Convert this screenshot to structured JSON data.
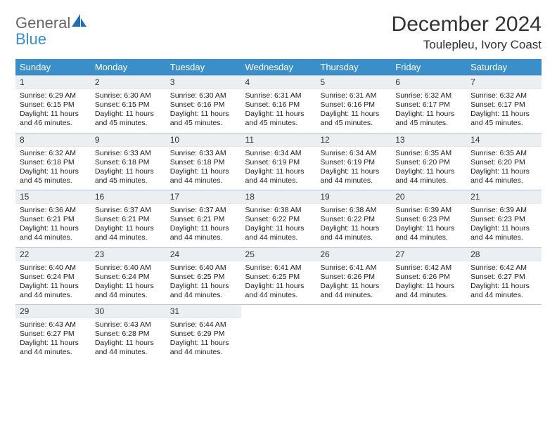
{
  "brand": {
    "word1": "General",
    "word2": "Blue",
    "icon_fill": "#1f6fb2"
  },
  "header": {
    "title": "December 2024",
    "location": "Toulepleu, Ivory Coast"
  },
  "colors": {
    "header_bg": "#3a8fc8",
    "header_fg": "#ffffff",
    "daynum_bg": "#eceff1",
    "row_border": "#b8c6d1",
    "page_bg": "#ffffff",
    "text": "#222222",
    "logo_gray": "#666666",
    "logo_blue": "#3a8fc8"
  },
  "typography": {
    "title_fontsize": 30,
    "location_fontsize": 17,
    "dayhead_fontsize": 13,
    "daynum_fontsize": 12,
    "body_fontsize": 10.5
  },
  "weekdays": [
    "Sunday",
    "Monday",
    "Tuesday",
    "Wednesday",
    "Thursday",
    "Friday",
    "Saturday"
  ],
  "calendar": {
    "rows": 5,
    "cols": 7,
    "days": [
      {
        "n": "1",
        "sunrise": "6:29 AM",
        "sunset": "6:15 PM",
        "day_h": 11,
        "day_m": 46
      },
      {
        "n": "2",
        "sunrise": "6:30 AM",
        "sunset": "6:15 PM",
        "day_h": 11,
        "day_m": 45
      },
      {
        "n": "3",
        "sunrise": "6:30 AM",
        "sunset": "6:16 PM",
        "day_h": 11,
        "day_m": 45
      },
      {
        "n": "4",
        "sunrise": "6:31 AM",
        "sunset": "6:16 PM",
        "day_h": 11,
        "day_m": 45
      },
      {
        "n": "5",
        "sunrise": "6:31 AM",
        "sunset": "6:16 PM",
        "day_h": 11,
        "day_m": 45
      },
      {
        "n": "6",
        "sunrise": "6:32 AM",
        "sunset": "6:17 PM",
        "day_h": 11,
        "day_m": 45
      },
      {
        "n": "7",
        "sunrise": "6:32 AM",
        "sunset": "6:17 PM",
        "day_h": 11,
        "day_m": 45
      },
      {
        "n": "8",
        "sunrise": "6:32 AM",
        "sunset": "6:18 PM",
        "day_h": 11,
        "day_m": 45
      },
      {
        "n": "9",
        "sunrise": "6:33 AM",
        "sunset": "6:18 PM",
        "day_h": 11,
        "day_m": 45
      },
      {
        "n": "10",
        "sunrise": "6:33 AM",
        "sunset": "6:18 PM",
        "day_h": 11,
        "day_m": 44
      },
      {
        "n": "11",
        "sunrise": "6:34 AM",
        "sunset": "6:19 PM",
        "day_h": 11,
        "day_m": 44
      },
      {
        "n": "12",
        "sunrise": "6:34 AM",
        "sunset": "6:19 PM",
        "day_h": 11,
        "day_m": 44
      },
      {
        "n": "13",
        "sunrise": "6:35 AM",
        "sunset": "6:20 PM",
        "day_h": 11,
        "day_m": 44
      },
      {
        "n": "14",
        "sunrise": "6:35 AM",
        "sunset": "6:20 PM",
        "day_h": 11,
        "day_m": 44
      },
      {
        "n": "15",
        "sunrise": "6:36 AM",
        "sunset": "6:21 PM",
        "day_h": 11,
        "day_m": 44
      },
      {
        "n": "16",
        "sunrise": "6:37 AM",
        "sunset": "6:21 PM",
        "day_h": 11,
        "day_m": 44
      },
      {
        "n": "17",
        "sunrise": "6:37 AM",
        "sunset": "6:21 PM",
        "day_h": 11,
        "day_m": 44
      },
      {
        "n": "18",
        "sunrise": "6:38 AM",
        "sunset": "6:22 PM",
        "day_h": 11,
        "day_m": 44
      },
      {
        "n": "19",
        "sunrise": "6:38 AM",
        "sunset": "6:22 PM",
        "day_h": 11,
        "day_m": 44
      },
      {
        "n": "20",
        "sunrise": "6:39 AM",
        "sunset": "6:23 PM",
        "day_h": 11,
        "day_m": 44
      },
      {
        "n": "21",
        "sunrise": "6:39 AM",
        "sunset": "6:23 PM",
        "day_h": 11,
        "day_m": 44
      },
      {
        "n": "22",
        "sunrise": "6:40 AM",
        "sunset": "6:24 PM",
        "day_h": 11,
        "day_m": 44
      },
      {
        "n": "23",
        "sunrise": "6:40 AM",
        "sunset": "6:24 PM",
        "day_h": 11,
        "day_m": 44
      },
      {
        "n": "24",
        "sunrise": "6:40 AM",
        "sunset": "6:25 PM",
        "day_h": 11,
        "day_m": 44
      },
      {
        "n": "25",
        "sunrise": "6:41 AM",
        "sunset": "6:25 PM",
        "day_h": 11,
        "day_m": 44
      },
      {
        "n": "26",
        "sunrise": "6:41 AM",
        "sunset": "6:26 PM",
        "day_h": 11,
        "day_m": 44
      },
      {
        "n": "27",
        "sunrise": "6:42 AM",
        "sunset": "6:26 PM",
        "day_h": 11,
        "day_m": 44
      },
      {
        "n": "28",
        "sunrise": "6:42 AM",
        "sunset": "6:27 PM",
        "day_h": 11,
        "day_m": 44
      },
      {
        "n": "29",
        "sunrise": "6:43 AM",
        "sunset": "6:27 PM",
        "day_h": 11,
        "day_m": 44
      },
      {
        "n": "30",
        "sunrise": "6:43 AM",
        "sunset": "6:28 PM",
        "day_h": 11,
        "day_m": 44
      },
      {
        "n": "31",
        "sunrise": "6:44 AM",
        "sunset": "6:29 PM",
        "day_h": 11,
        "day_m": 44
      }
    ],
    "labels": {
      "sunrise": "Sunrise: ",
      "sunset": "Sunset: ",
      "daylight_prefix": "Daylight: ",
      "hours_word": " hours and ",
      "minutes_word": " minutes."
    }
  }
}
